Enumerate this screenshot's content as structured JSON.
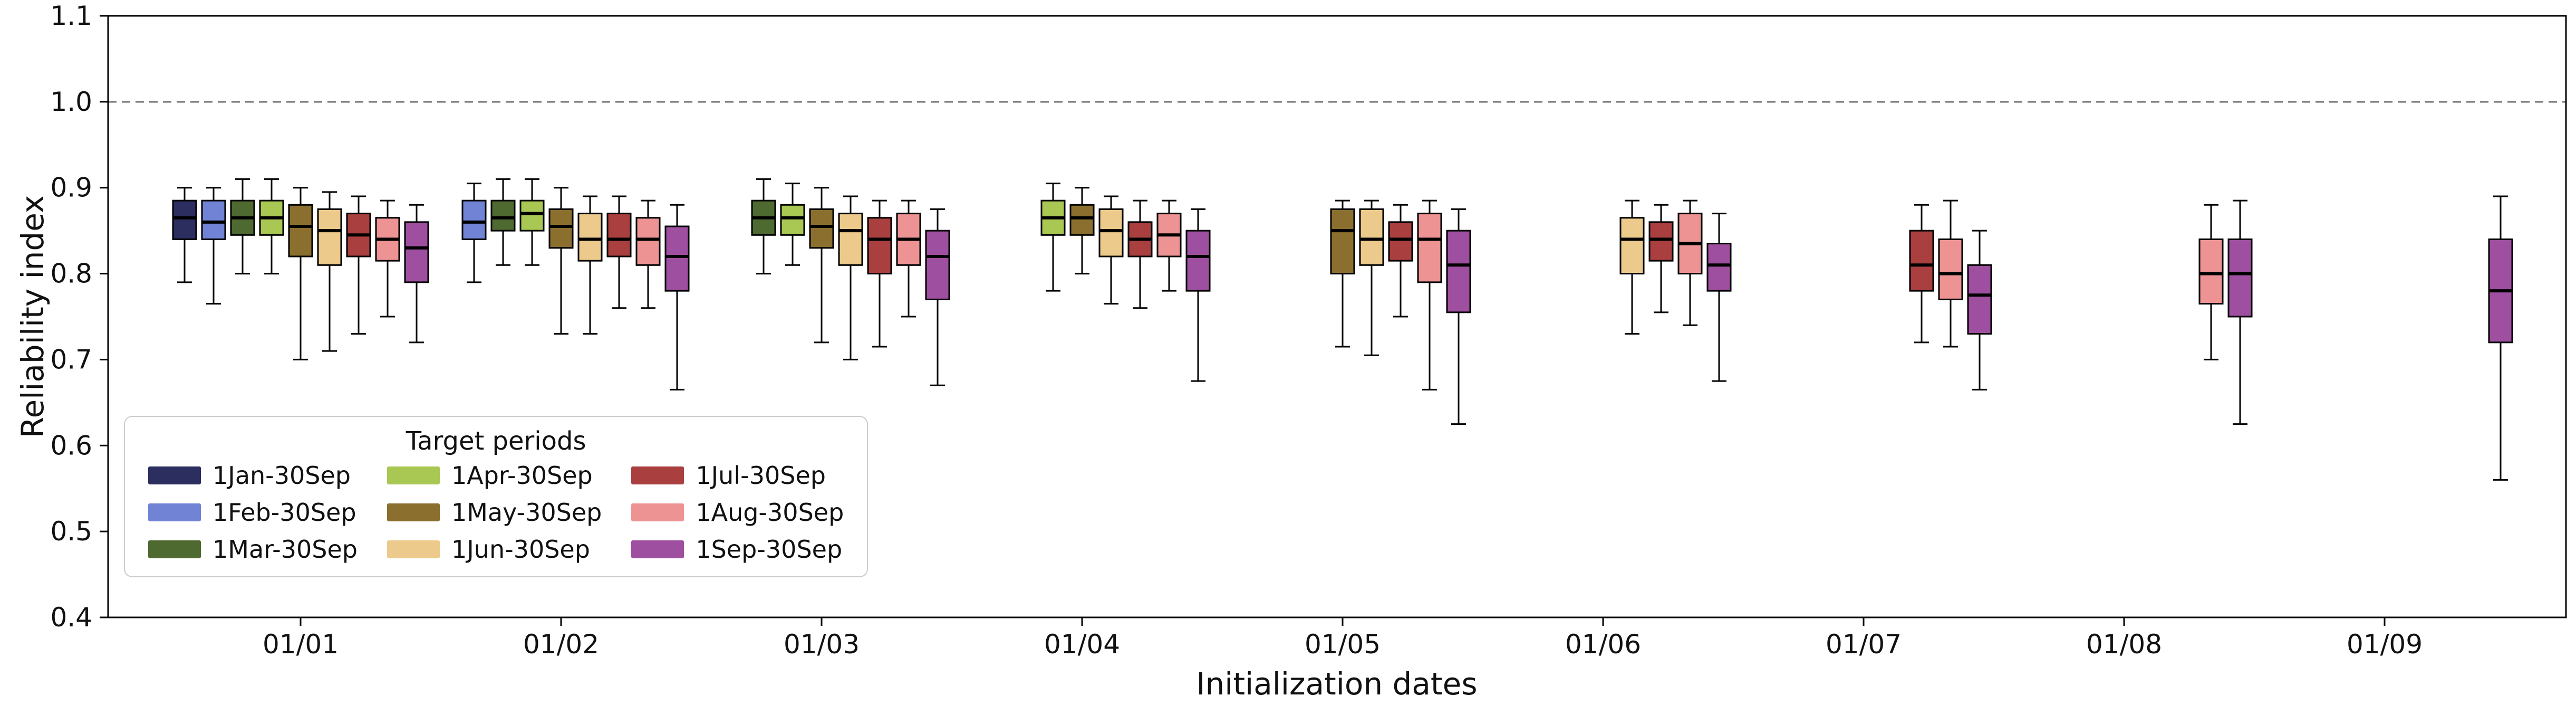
{
  "chart_data": {
    "type": "boxplot",
    "title": "",
    "xlabel": "Initialization dates",
    "ylabel": "Reliability index",
    "ylim": [
      0.4,
      1.1
    ],
    "yticks": [
      0.4,
      0.5,
      0.6,
      0.7,
      0.8,
      0.9,
      1.0,
      1.1
    ],
    "grid": false,
    "legend_title": "Target periods",
    "legend_position": "lower-left",
    "reference_line": {
      "y": 1.0,
      "style": "dashed",
      "color": "#7f7f7f"
    },
    "categories": [
      "01/01",
      "01/02",
      "01/03",
      "01/04",
      "01/05",
      "01/06",
      "01/07",
      "01/08",
      "01/09"
    ],
    "box_values_format": "[whisker_low, q1, median, q3, whisker_high]",
    "series": [
      {
        "label": "1Jan-30Sep",
        "color": "#2b2e5e",
        "boxes": [
          [
            0.79,
            0.84,
            0.865,
            0.885,
            0.9
          ],
          null,
          null,
          null,
          null,
          null,
          null,
          null,
          null
        ]
      },
      {
        "label": "1Feb-30Sep",
        "color": "#7183d5",
        "boxes": [
          [
            0.765,
            0.84,
            0.86,
            0.885,
            0.9
          ],
          [
            0.79,
            0.84,
            0.86,
            0.885,
            0.905
          ],
          null,
          null,
          null,
          null,
          null,
          null,
          null
        ]
      },
      {
        "label": "1Mar-30Sep",
        "color": "#4e6a30",
        "boxes": [
          [
            0.8,
            0.845,
            0.865,
            0.885,
            0.91
          ],
          [
            0.81,
            0.85,
            0.865,
            0.885,
            0.91
          ],
          [
            0.8,
            0.845,
            0.865,
            0.885,
            0.91
          ],
          null,
          null,
          null,
          null,
          null,
          null
        ]
      },
      {
        "label": "1Apr-30Sep",
        "color": "#a9c753",
        "boxes": [
          [
            0.8,
            0.845,
            0.865,
            0.885,
            0.91
          ],
          [
            0.81,
            0.85,
            0.87,
            0.885,
            0.91
          ],
          [
            0.81,
            0.845,
            0.865,
            0.88,
            0.905
          ],
          [
            0.78,
            0.845,
            0.865,
            0.885,
            0.905
          ],
          null,
          null,
          null,
          null,
          null
        ]
      },
      {
        "label": "1May-30Sep",
        "color": "#8a6f2f",
        "boxes": [
          [
            0.7,
            0.82,
            0.855,
            0.88,
            0.9
          ],
          [
            0.73,
            0.83,
            0.855,
            0.875,
            0.9
          ],
          [
            0.72,
            0.83,
            0.855,
            0.875,
            0.9
          ],
          [
            0.8,
            0.845,
            0.865,
            0.88,
            0.9
          ],
          [
            0.715,
            0.8,
            0.85,
            0.875,
            0.885
          ],
          null,
          null,
          null,
          null
        ]
      },
      {
        "label": "1Jun-30Sep",
        "color": "#ecca8c",
        "boxes": [
          [
            0.71,
            0.81,
            0.85,
            0.875,
            0.895
          ],
          [
            0.73,
            0.815,
            0.84,
            0.87,
            0.89
          ],
          [
            0.7,
            0.81,
            0.85,
            0.87,
            0.89
          ],
          [
            0.765,
            0.82,
            0.85,
            0.875,
            0.89
          ],
          [
            0.705,
            0.81,
            0.84,
            0.875,
            0.885
          ],
          [
            0.73,
            0.8,
            0.84,
            0.865,
            0.885
          ],
          null,
          null,
          null
        ]
      },
      {
        "label": "1Jul-30Sep",
        "color": "#aa3f3f",
        "boxes": [
          [
            0.73,
            0.82,
            0.845,
            0.87,
            0.89
          ],
          [
            0.76,
            0.82,
            0.84,
            0.87,
            0.89
          ],
          [
            0.715,
            0.8,
            0.84,
            0.865,
            0.885
          ],
          [
            0.76,
            0.82,
            0.84,
            0.86,
            0.885
          ],
          [
            0.75,
            0.815,
            0.84,
            0.86,
            0.88
          ],
          [
            0.755,
            0.815,
            0.84,
            0.86,
            0.88
          ],
          [
            0.72,
            0.78,
            0.81,
            0.85,
            0.88
          ],
          null,
          null
        ]
      },
      {
        "label": "1Aug-30Sep",
        "color": "#ee9393",
        "boxes": [
          [
            0.75,
            0.815,
            0.84,
            0.865,
            0.885
          ],
          [
            0.76,
            0.81,
            0.84,
            0.865,
            0.885
          ],
          [
            0.75,
            0.81,
            0.84,
            0.87,
            0.885
          ],
          [
            0.78,
            0.82,
            0.845,
            0.87,
            0.885
          ],
          [
            0.665,
            0.79,
            0.84,
            0.87,
            0.885
          ],
          [
            0.74,
            0.8,
            0.835,
            0.87,
            0.885
          ],
          [
            0.715,
            0.77,
            0.8,
            0.84,
            0.885
          ],
          [
            0.7,
            0.765,
            0.8,
            0.84,
            0.88
          ],
          null
        ]
      },
      {
        "label": "1Sep-30Sep",
        "color": "#9f4f9f",
        "boxes": [
          [
            0.72,
            0.79,
            0.83,
            0.86,
            0.88
          ],
          [
            0.665,
            0.78,
            0.82,
            0.855,
            0.88
          ],
          [
            0.67,
            0.77,
            0.82,
            0.85,
            0.875
          ],
          [
            0.675,
            0.78,
            0.82,
            0.85,
            0.875
          ],
          [
            0.625,
            0.755,
            0.81,
            0.85,
            0.875
          ],
          [
            0.675,
            0.78,
            0.81,
            0.835,
            0.87
          ],
          [
            0.665,
            0.73,
            0.775,
            0.81,
            0.85
          ],
          [
            0.625,
            0.75,
            0.8,
            0.84,
            0.885
          ],
          [
            0.56,
            0.72,
            0.78,
            0.84,
            0.89
          ]
        ]
      }
    ]
  }
}
